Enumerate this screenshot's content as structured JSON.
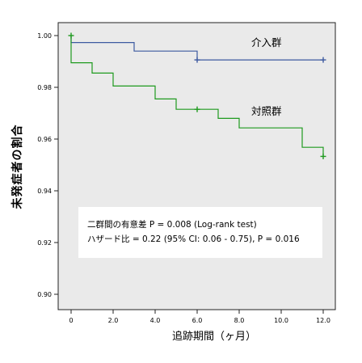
{
  "chart_data": {
    "type": "line",
    "subtype": "kaplan-meier-step",
    "title": "",
    "xlabel": "追跡期間（ヶ月）",
    "ylabel": "未発症者の割合",
    "xlim": [
      0,
      12
    ],
    "ylim": [
      0.9,
      1.0
    ],
    "x_ticks": [
      0,
      2,
      4,
      6,
      8,
      10,
      12
    ],
    "x_tick_labels": [
      "0",
      "2.0",
      "4.0",
      "6.0",
      "8.0",
      "10.0",
      "12.0"
    ],
    "y_ticks": [
      0.9,
      0.92,
      0.94,
      0.96,
      0.98,
      1.0
    ],
    "y_tick_labels": [
      "0.90",
      "0.92",
      "0.94",
      "0.96",
      "0.98",
      "1.00"
    ],
    "grid": false,
    "legend": "none",
    "plot_background": "#eaeaea",
    "series": [
      {
        "name": "介入群",
        "color": "#3d5aa0",
        "steps": [
          [
            0,
            1.0
          ],
          [
            0,
            0.9973
          ],
          [
            3,
            0.9973
          ],
          [
            3,
            0.994
          ],
          [
            6,
            0.994
          ],
          [
            6,
            0.9906
          ],
          [
            12,
            0.9906
          ]
        ],
        "censored": [
          [
            6,
            0.9906
          ],
          [
            12,
            0.9906
          ]
        ]
      },
      {
        "name": "対照群",
        "color": "#1e9a1e",
        "steps": [
          [
            0,
            1.0
          ],
          [
            0,
            0.9895
          ],
          [
            1,
            0.9895
          ],
          [
            1,
            0.9855
          ],
          [
            2,
            0.9855
          ],
          [
            2,
            0.9805
          ],
          [
            4,
            0.9805
          ],
          [
            4,
            0.9755
          ],
          [
            5,
            0.9755
          ],
          [
            5,
            0.9715
          ],
          [
            7,
            0.9715
          ],
          [
            7,
            0.968
          ],
          [
            8,
            0.968
          ],
          [
            8,
            0.9643
          ],
          [
            11,
            0.9643
          ],
          [
            11,
            0.9568
          ],
          [
            12,
            0.9568
          ],
          [
            12,
            0.9533
          ]
        ],
        "censored": [
          [
            0,
            1.0
          ],
          [
            6,
            0.9715
          ],
          [
            12,
            0.9533
          ]
        ]
      }
    ],
    "annotations": {
      "stats_line1": "二群間の有意差  P = 0.008 (Log-rank test)",
      "stats_line2": "ハザード比 = 0.22 (95% CI: 0.06 - 0.75), P = 0.016"
    }
  }
}
